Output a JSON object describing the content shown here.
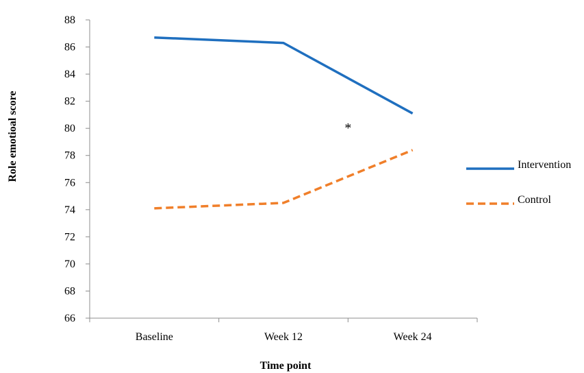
{
  "chart_data": {
    "type": "line",
    "xlabel": "Time point",
    "ylabel": "Role emotioal score",
    "categories": [
      "Baseline",
      "Week 12",
      "Week 24"
    ],
    "ylim": [
      66,
      88
    ],
    "ytick_step": 2,
    "yticks": [
      "66",
      "68",
      "70",
      "72",
      "74",
      "76",
      "78",
      "80",
      "82",
      "84",
      "86",
      "88"
    ],
    "grid": false,
    "legend_position": "right",
    "series": [
      {
        "name": "Intervention",
        "values": [
          86.7,
          86.3,
          81.1
        ],
        "color": "#1f6fbf",
        "style": "solid"
      },
      {
        "name": "Control",
        "values": [
          74.1,
          74.5,
          78.4
        ],
        "color": "#f07f2a",
        "style": "dashed"
      }
    ],
    "annotations": [
      {
        "text": "*",
        "x_between": [
          "Week 12",
          "Week 24"
        ],
        "y": 80
      }
    ]
  }
}
